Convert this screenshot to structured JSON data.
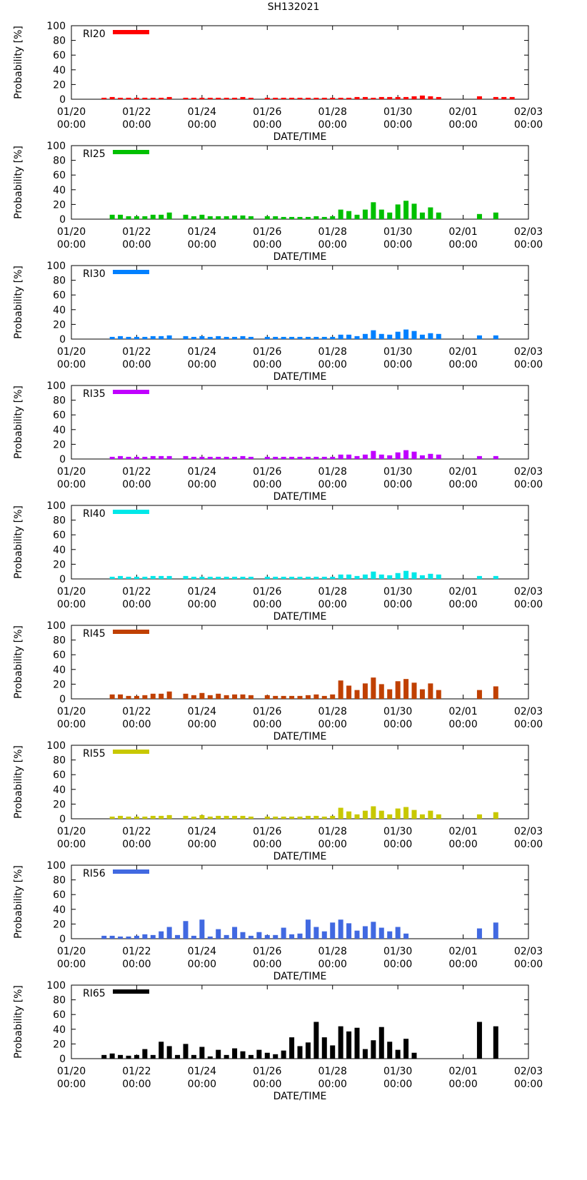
{
  "title": "SH132021",
  "x_ticks": [
    {
      "date": "01/20",
      "time": "00:00"
    },
    {
      "date": "01/22",
      "time": "00:00"
    },
    {
      "date": "01/24",
      "time": "00:00"
    },
    {
      "date": "01/26",
      "time": "00:00"
    },
    {
      "date": "01/28",
      "time": "00:00"
    },
    {
      "date": "01/30",
      "time": "00:00"
    },
    {
      "date": "02/01",
      "time": "00:00"
    },
    {
      "date": "02/03",
      "time": "00:00"
    }
  ],
  "chart_data": [
    {
      "type": "bar",
      "label": "RI20",
      "color": "#ff0000",
      "xlabel": "DATE/TIME",
      "ylabel": "Probability [%]",
      "ylim": [
        0,
        100
      ],
      "yticks": [
        0,
        20,
        40,
        60,
        80,
        100
      ],
      "xlim_days": [
        0,
        14
      ],
      "values": [
        2,
        3,
        2,
        2,
        2,
        2,
        2,
        2,
        3,
        2,
        2,
        2,
        2,
        2,
        2,
        2,
        3,
        2,
        2,
        2,
        2,
        2,
        2,
        2,
        2,
        2,
        2,
        2,
        2,
        3,
        3,
        2,
        3,
        3,
        3,
        3,
        4,
        5,
        4,
        3,
        4,
        3,
        3,
        3
      ]
    },
    {
      "type": "bar",
      "label": "RI25",
      "color": "#00c000",
      "xlabel": "DATE/TIME",
      "ylabel": "Probability [%]",
      "ylim": [
        0,
        100
      ],
      "yticks": [
        0,
        20,
        40,
        60,
        80,
        100
      ],
      "xlim_days": [
        0,
        14
      ],
      "values": [
        6,
        6,
        4,
        4,
        4,
        6,
        6,
        9,
        6,
        4,
        6,
        4,
        4,
        4,
        5,
        5,
        4,
        4,
        4,
        3,
        3,
        3,
        3,
        4,
        3,
        4,
        13,
        11,
        6,
        13,
        23,
        13,
        9,
        20,
        25,
        21,
        9,
        16,
        9,
        7,
        9
      ]
    },
    {
      "type": "bar",
      "label": "RI30",
      "color": "#0080ff",
      "xlabel": "DATE/TIME",
      "ylabel": "Probability [%]",
      "ylim": [
        0,
        100
      ],
      "yticks": [
        0,
        20,
        40,
        60,
        80,
        100
      ],
      "xlim_days": [
        0,
        14
      ],
      "values": [
        3,
        4,
        3,
        3,
        3,
        4,
        4,
        5,
        4,
        3,
        4,
        3,
        4,
        3,
        3,
        4,
        3,
        3,
        3,
        3,
        3,
        3,
        3,
        3,
        3,
        3,
        6,
        6,
        4,
        7,
        12,
        7,
        6,
        10,
        13,
        11,
        6,
        8,
        7,
        5,
        5
      ]
    },
    {
      "type": "bar",
      "label": "RI35",
      "color": "#c000ff",
      "xlabel": "DATE/TIME",
      "ylabel": "Probability [%]",
      "ylim": [
        0,
        100
      ],
      "yticks": [
        0,
        20,
        40,
        60,
        80,
        100
      ],
      "xlim_days": [
        0,
        14
      ],
      "values": [
        3,
        4,
        3,
        3,
        3,
        4,
        4,
        4,
        4,
        3,
        3,
        3,
        3,
        3,
        3,
        4,
        3,
        3,
        3,
        3,
        3,
        3,
        3,
        3,
        3,
        3,
        6,
        6,
        4,
        6,
        11,
        6,
        5,
        9,
        12,
        10,
        5,
        7,
        6,
        4,
        4
      ]
    },
    {
      "type": "bar",
      "label": "RI40",
      "color": "#00e8e8",
      "xlabel": "DATE/TIME",
      "ylabel": "Probability [%]",
      "ylim": [
        0,
        100
      ],
      "yticks": [
        0,
        20,
        40,
        60,
        80,
        100
      ],
      "xlim_days": [
        0,
        14
      ],
      "values": [
        3,
        4,
        3,
        3,
        3,
        4,
        4,
        4,
        4,
        3,
        3,
        3,
        3,
        3,
        3,
        3,
        3,
        3,
        3,
        3,
        3,
        3,
        3,
        3,
        3,
        3,
        6,
        6,
        4,
        6,
        10,
        6,
        5,
        8,
        11,
        9,
        5,
        7,
        6,
        4,
        4
      ]
    },
    {
      "type": "bar",
      "label": "RI45",
      "color": "#c04000",
      "xlabel": "DATE/TIME",
      "ylabel": "Probability [%]",
      "ylim": [
        0,
        100
      ],
      "yticks": [
        0,
        20,
        40,
        60,
        80,
        100
      ],
      "xlim_days": [
        0,
        14
      ],
      "values": [
        6,
        6,
        4,
        4,
        5,
        7,
        7,
        10,
        7,
        5,
        8,
        5,
        7,
        5,
        6,
        6,
        5,
        5,
        4,
        4,
        4,
        4,
        5,
        6,
        4,
        6,
        25,
        18,
        12,
        21,
        29,
        20,
        13,
        24,
        27,
        22,
        13,
        21,
        12,
        12,
        17
      ]
    },
    {
      "type": "bar",
      "label": "RI55",
      "color": "#c8c800",
      "xlabel": "DATE/TIME",
      "ylabel": "Probability [%]",
      "ylim": [
        0,
        100
      ],
      "yticks": [
        0,
        20,
        40,
        60,
        80,
        100
      ],
      "xlim_days": [
        0,
        14
      ],
      "values": [
        3,
        4,
        3,
        3,
        3,
        4,
        4,
        5,
        4,
        3,
        5,
        3,
        4,
        4,
        4,
        4,
        3,
        3,
        3,
        3,
        3,
        3,
        4,
        4,
        3,
        4,
        15,
        10,
        6,
        11,
        17,
        11,
        6,
        14,
        16,
        12,
        6,
        11,
        6,
        6,
        9
      ]
    },
    {
      "type": "bar",
      "label": "RI56",
      "color": "#4169e1",
      "xlabel": "DATE/TIME",
      "ylabel": "Probability [%]",
      "ylim": [
        0,
        100
      ],
      "yticks": [
        0,
        20,
        40,
        60,
        80,
        100
      ],
      "xlim_days": [
        0,
        14
      ],
      "values": [
        4,
        4,
        3,
        3,
        4,
        6,
        5,
        10,
        16,
        5,
        24,
        4,
        26,
        3,
        13,
        5,
        16,
        9,
        4,
        9,
        5,
        5,
        15,
        6,
        7,
        26,
        16,
        10,
        22,
        26,
        21,
        11,
        17,
        23,
        15,
        10,
        16,
        7,
        14,
        22
      ]
    },
    {
      "type": "bar",
      "label": "RI65",
      "color": "#000000",
      "xlabel": "DATE/TIME",
      "ylabel": "Probability [%]",
      "ylim": [
        0,
        100
      ],
      "yticks": [
        0,
        20,
        40,
        60,
        80,
        100
      ],
      "xlim_days": [
        0,
        14
      ],
      "values": [
        5,
        7,
        5,
        4,
        5,
        13,
        5,
        23,
        17,
        5,
        20,
        5,
        16,
        3,
        12,
        5,
        14,
        10,
        5,
        12,
        8,
        6,
        11,
        29,
        17,
        22,
        50,
        29,
        18,
        44,
        37,
        42,
        13,
        25,
        43,
        23,
        12,
        27,
        8,
        50,
        44
      ]
    }
  ],
  "series_x_days": {
    "default": [
      1.25,
      1.5,
      1.75,
      2.0,
      2.25,
      2.5,
      2.75,
      3.0,
      3.5,
      3.75,
      4.0,
      4.25,
      4.5,
      4.75,
      5.0,
      5.25,
      5.5,
      6.0,
      6.25,
      6.5,
      6.75,
      7.0,
      7.25,
      7.5,
      7.75,
      8.0,
      8.25,
      8.5,
      8.75,
      9.0,
      9.25,
      9.5,
      9.75,
      10.0,
      10.25,
      10.5,
      10.75,
      11.0,
      11.25,
      12.5,
      13.0
    ],
    "RI20": [
      1.0,
      1.25,
      1.5,
      1.75,
      2.0,
      2.25,
      2.5,
      2.75,
      3.0,
      3.5,
      3.75,
      4.0,
      4.25,
      4.5,
      4.75,
      5.0,
      5.25,
      5.5,
      6.0,
      6.25,
      6.5,
      6.75,
      7.0,
      7.25,
      7.5,
      7.75,
      8.0,
      8.25,
      8.5,
      8.75,
      9.0,
      9.25,
      9.5,
      9.75,
      10.0,
      10.25,
      10.5,
      10.75,
      11.0,
      11.25,
      12.5,
      13.0,
      13.25,
      13.5
    ],
    "RI56": [
      1.0,
      1.25,
      1.5,
      1.75,
      2.0,
      2.25,
      2.5,
      2.75,
      3.0,
      3.25,
      3.5,
      3.75,
      4.0,
      4.25,
      4.5,
      4.75,
      5.0,
      5.25,
      5.5,
      5.75,
      6.0,
      6.25,
      6.5,
      6.75,
      7.0,
      7.25,
      7.5,
      7.75,
      8.0,
      8.25,
      8.5,
      8.75,
      9.0,
      9.25,
      9.5,
      9.75,
      10.0,
      10.25,
      12.5,
      13.0
    ],
    "RI65": [
      1.0,
      1.25,
      1.5,
      1.75,
      2.0,
      2.25,
      2.5,
      2.75,
      3.0,
      3.25,
      3.5,
      3.75,
      4.0,
      4.25,
      4.5,
      4.75,
      5.0,
      5.25,
      5.5,
      5.75,
      6.0,
      6.25,
      6.5,
      6.75,
      7.0,
      7.25,
      7.5,
      7.75,
      8.0,
      8.25,
      8.5,
      8.75,
      9.0,
      9.25,
      9.5,
      9.75,
      10.0,
      10.25,
      10.5,
      12.5,
      13.0
    ]
  }
}
